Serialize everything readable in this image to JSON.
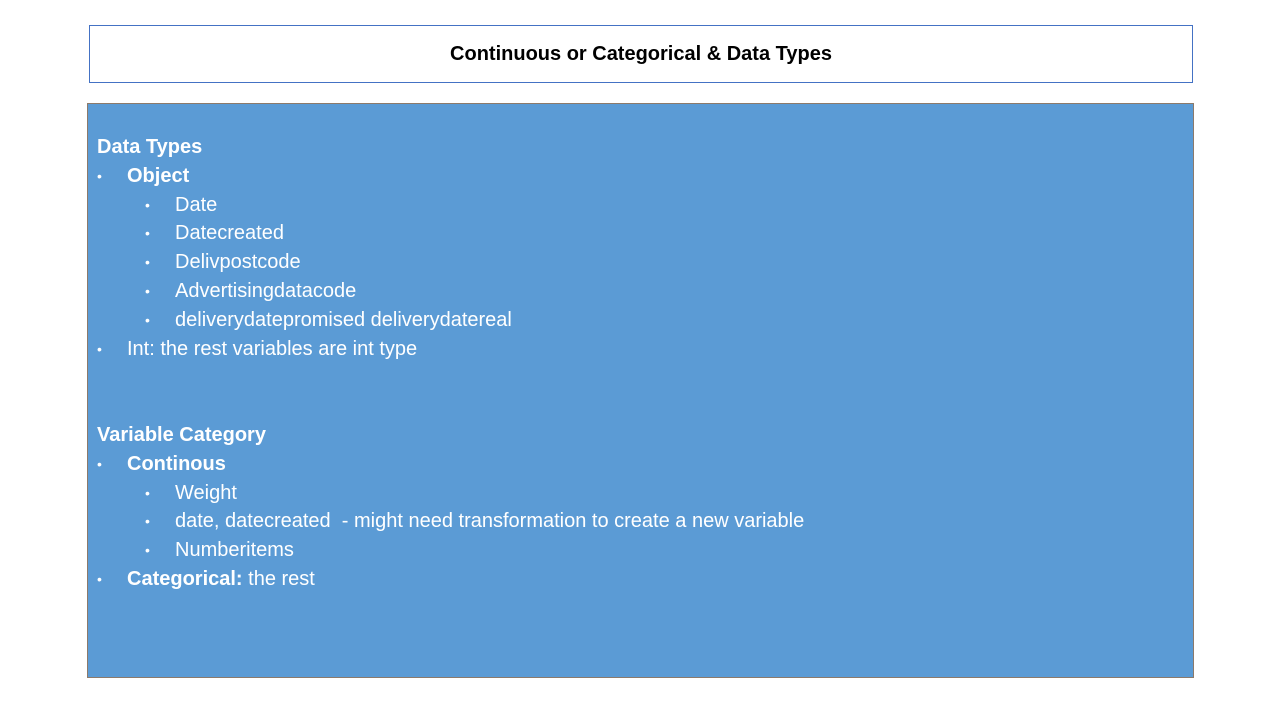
{
  "title": "Continuous or Categorical & Data Types",
  "bullet_glyph": "•",
  "data_types": {
    "heading": "Data Types",
    "object_label": "Object",
    "object_items": [
      "Date",
      "Datecreated",
      "Delivpostcode",
      "Advertisingdatacode",
      "deliverydatepromised deliverydatereal"
    ],
    "int_text": "Int: the rest variables are int type"
  },
  "variable_category": {
    "heading": "Variable Category",
    "continuous_label": "Continous",
    "continuous_items": [
      "Weight",
      "date, datecreated  - might need transformation to create a new variable",
      "Numberitems"
    ],
    "categorical_label": "Categorical:",
    "categorical_text": " the rest"
  },
  "colors": {
    "content_background": "#5b9bd5",
    "title_border": "#4472c4",
    "text": "#ffffff"
  }
}
